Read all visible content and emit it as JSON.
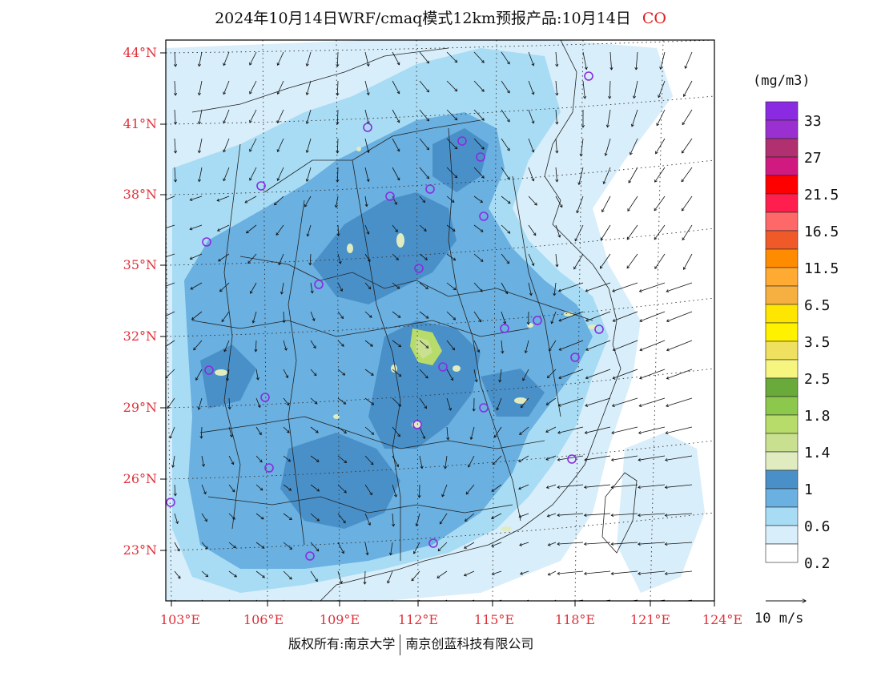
{
  "title": {
    "text": "2024年10月14日WRF/cmaq模式12km预报产品:10月14日",
    "species": "CO",
    "species_color": "#e02020"
  },
  "map": {
    "lat_labels": [
      "44°N",
      "41°N",
      "38°N",
      "35°N",
      "32°N",
      "29°N",
      "26°N",
      "23°N"
    ],
    "lon_labels": [
      "103°E",
      "106°E",
      "109°E",
      "112°E",
      "115°E",
      "118°E",
      "121°E",
      "124°E"
    ],
    "label_color": "#e0303a",
    "city_marker_color": "#8a2be2"
  },
  "legend": {
    "unit": "(mg/m3)",
    "labels": [
      "33",
      "27",
      "21.5",
      "16.5",
      "11.5",
      "6.5",
      "3.5",
      "2.5",
      "1.8",
      "1.4",
      "1",
      "0.6",
      "0.2"
    ],
    "colors": [
      "#8a2be2",
      "#9b30d0",
      "#b03070",
      "#d01a80",
      "#ff0000",
      "#ff1e4e",
      "#ff6868",
      "#f05a28",
      "#ff8c00",
      "#ffaa33",
      "#f5b041",
      "#ffe600",
      "#fff200",
      "#f0e060",
      "#f5f580",
      "#6aaa3a",
      "#8cc84b",
      "#b8dc6a",
      "#c8e090",
      "#e0ecc0",
      "#4a90c8",
      "#6ab0e0",
      "#a8dcf4",
      "#d8eefa",
      "#ffffff"
    ]
  },
  "vector": {
    "label": "10 m/s"
  },
  "footer": {
    "left": "版权所有:南京大学",
    "right": "南京创蓝科技有限公司"
  }
}
